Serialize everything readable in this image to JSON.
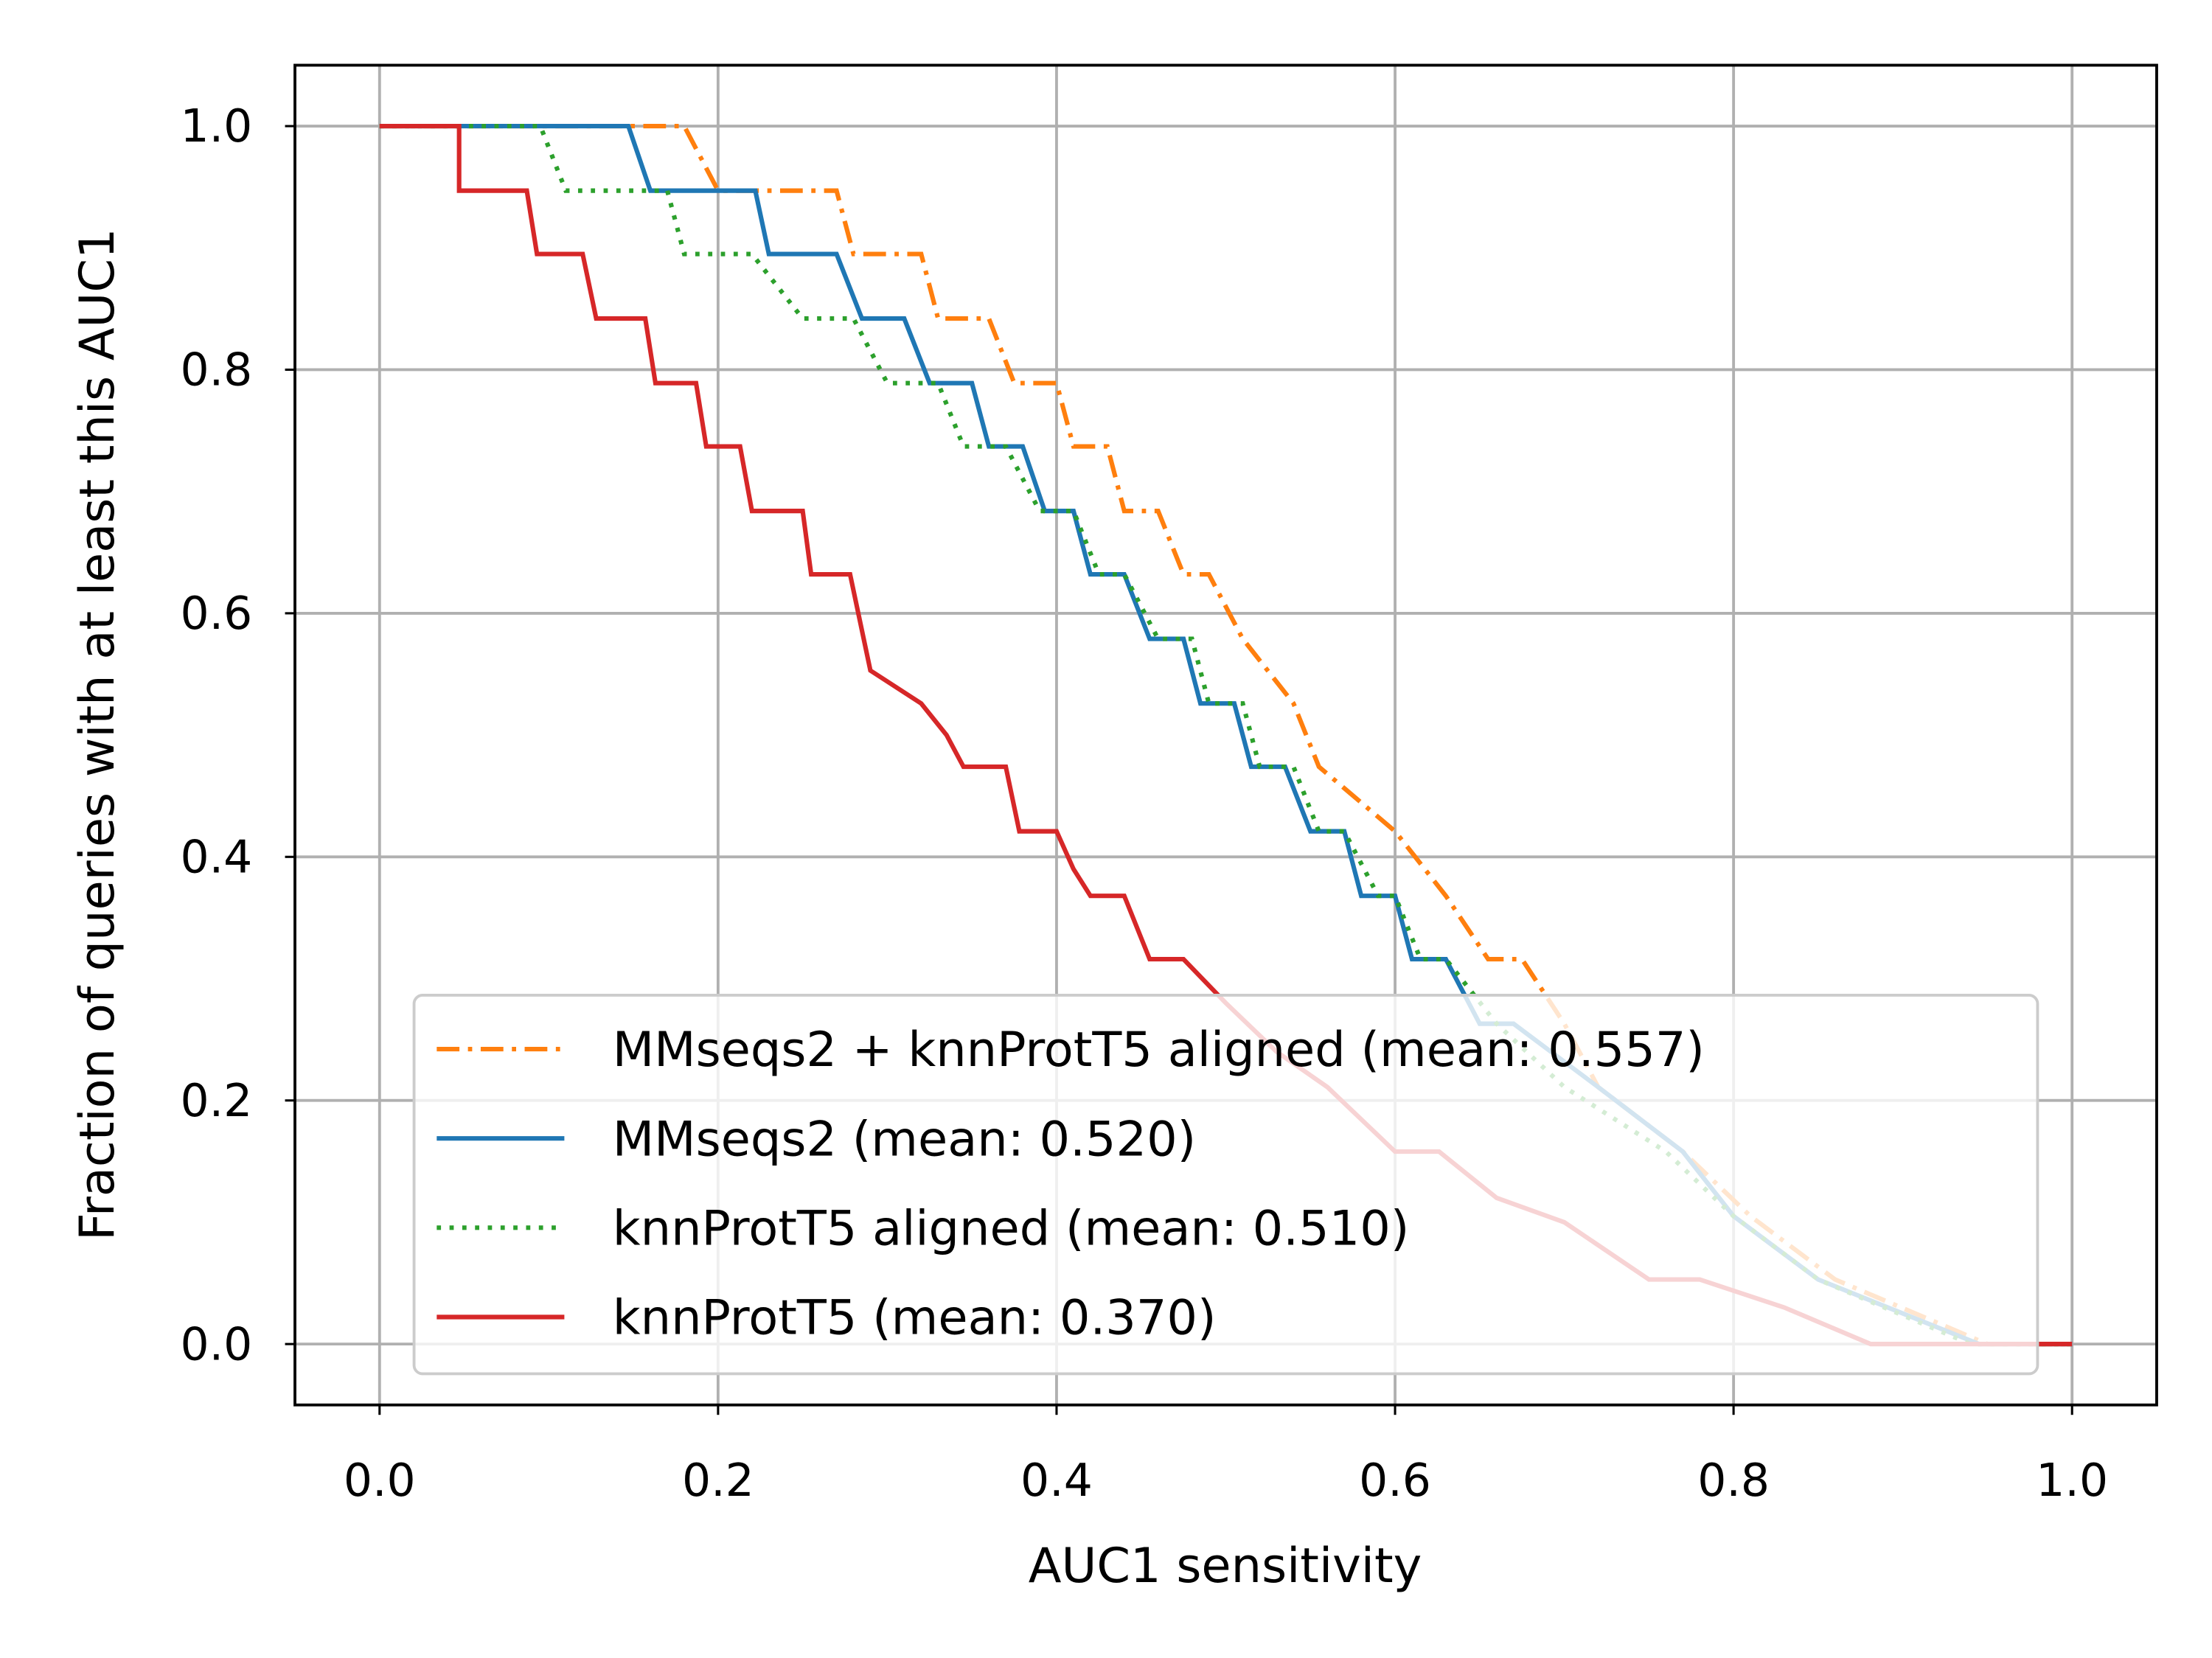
{
  "chart_data": {
    "type": "line",
    "xlabel": "AUC1 sensitivity",
    "ylabel": "Fraction of queries with at least this AUC1",
    "xlim": [
      -0.05,
      1.05
    ],
    "ylim": [
      -0.05,
      1.05
    ],
    "xticks": [
      {
        "value": 0,
        "label": "0.0"
      },
      0.2,
      0.4,
      0.6,
      0.8,
      {
        "value": 1,
        "label": "1.0"
      }
    ],
    "yticks": [
      {
        "value": 0,
        "label": "0.0"
      },
      0.2,
      0.4,
      0.6,
      0.8,
      {
        "value": 1,
        "label": "1.0"
      }
    ],
    "grid": true,
    "legend_loc": "lower center",
    "series": [
      {
        "name": "MMseqs2 + knnProtT5 aligned (mean: 0.557)",
        "color": "#ff7f0e",
        "linestyle": "dashdot",
        "x": [
          0,
          0.18,
          0.2,
          0.27,
          0.28,
          0.32,
          0.33,
          0.36,
          0.375,
          0.4,
          0.41,
          0.43,
          0.44,
          0.46,
          0.475,
          0.49,
          0.51,
          0.54,
          0.555,
          0.6,
          0.63,
          0.655,
          0.675,
          0.7,
          0.72,
          0.77,
          0.81,
          0.86,
          0.95,
          1
        ],
        "values": [
          1,
          1,
          0.947,
          0.947,
          0.895,
          0.895,
          0.842,
          0.842,
          0.789,
          0.789,
          0.737,
          0.737,
          0.684,
          0.684,
          0.632,
          0.632,
          0.579,
          0.526,
          0.474,
          0.421,
          0.368,
          0.316,
          0.316,
          0.263,
          0.211,
          0.158,
          0.105,
          0.053,
          0,
          0
        ]
      },
      {
        "name": "MMseqs2 (mean: 0.520)",
        "color": "#1f77b4",
        "linestyle": "solid",
        "x": [
          0,
          0.147,
          0.16,
          0.222,
          0.23,
          0.27,
          0.285,
          0.31,
          0.325,
          0.35,
          0.36,
          0.38,
          0.393,
          0.41,
          0.42,
          0.44,
          0.455,
          0.475,
          0.485,
          0.505,
          0.515,
          0.535,
          0.55,
          0.57,
          0.58,
          0.6,
          0.61,
          0.63,
          0.65,
          0.67,
          0.72,
          0.77,
          0.8,
          0.85,
          0.945,
          1
        ],
        "values": [
          1,
          1,
          0.947,
          0.947,
          0.895,
          0.895,
          0.842,
          0.842,
          0.789,
          0.789,
          0.737,
          0.737,
          0.684,
          0.684,
          0.632,
          0.632,
          0.579,
          0.579,
          0.526,
          0.526,
          0.474,
          0.474,
          0.421,
          0.421,
          0.368,
          0.368,
          0.316,
          0.316,
          0.263,
          0.263,
          0.211,
          0.158,
          0.105,
          0.053,
          0,
          0
        ]
      },
      {
        "name": "knnProtT5 aligned (mean: 0.510)",
        "color": "#2ca02c",
        "linestyle": "dotted",
        "x": [
          0,
          0.095,
          0.11,
          0.17,
          0.18,
          0.22,
          0.25,
          0.28,
          0.3,
          0.33,
          0.345,
          0.37,
          0.39,
          0.41,
          0.425,
          0.44,
          0.46,
          0.48,
          0.49,
          0.51,
          0.52,
          0.54,
          0.555,
          0.57,
          0.59,
          0.6,
          0.615,
          0.63,
          0.66,
          0.7,
          0.76,
          0.8,
          0.85,
          0.94,
          1
        ],
        "values": [
          1,
          1,
          0.947,
          0.947,
          0.895,
          0.895,
          0.842,
          0.842,
          0.789,
          0.789,
          0.737,
          0.737,
          0.684,
          0.684,
          0.632,
          0.632,
          0.579,
          0.579,
          0.526,
          0.526,
          0.474,
          0.474,
          0.421,
          0.421,
          0.368,
          0.368,
          0.316,
          0.316,
          0.263,
          0.211,
          0.158,
          0.105,
          0.053,
          0,
          0
        ]
      },
      {
        "name": "knnProtT5 (mean: 0.370)",
        "color": "#d62728",
        "linestyle": "solid",
        "x": [
          0,
          0.047,
          0.047,
          0.087,
          0.093,
          0.12,
          0.128,
          0.157,
          0.163,
          0.187,
          0.193,
          0.213,
          0.22,
          0.25,
          0.255,
          0.278,
          0.29,
          0.32,
          0.335,
          0.345,
          0.37,
          0.378,
          0.4,
          0.41,
          0.42,
          0.44,
          0.455,
          0.475,
          0.5,
          0.53,
          0.56,
          0.6,
          0.626,
          0.66,
          0.7,
          0.75,
          0.78,
          0.83,
          0.881,
          1
        ],
        "values": [
          1,
          1,
          0.947,
          0.947,
          0.895,
          0.895,
          0.842,
          0.842,
          0.789,
          0.789,
          0.737,
          0.737,
          0.684,
          0.684,
          0.632,
          0.632,
          0.553,
          0.526,
          0.5,
          0.474,
          0.474,
          0.421,
          0.421,
          0.39,
          0.368,
          0.368,
          0.316,
          0.316,
          0.28,
          0.24,
          0.211,
          0.158,
          0.158,
          0.12,
          0.1,
          0.053,
          0.053,
          0.03,
          0,
          0
        ]
      }
    ]
  }
}
